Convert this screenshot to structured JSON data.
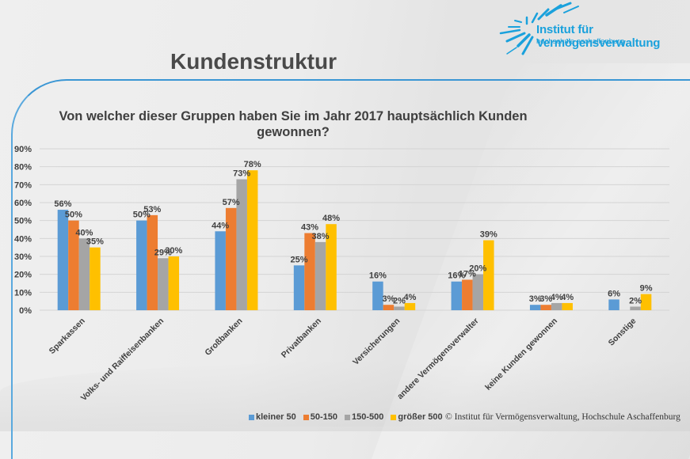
{
  "header": {
    "title": "Kundenstruktur",
    "logo_line1": "Institut für Vermögensverwaltung",
    "logo_line2": "hochschule aschaffenburg"
  },
  "footer": {
    "copyright": "© Institut für Vermögensverwaltung, Hochschule Aschaffenburg"
  },
  "chart_data": {
    "type": "bar",
    "title": "Von welcher dieser Gruppen haben Sie im Jahr 2017 hauptsächlich Kunden gewonnen?",
    "title_lines": [
      "Von welcher dieser Gruppen haben Sie im Jahr 2017 hauptsächlich Kunden",
      "gewonnen?"
    ],
    "xlabel": "",
    "ylabel": "",
    "ylim": [
      0,
      90
    ],
    "yticks": [
      "0%",
      "10%",
      "20%",
      "30%",
      "40%",
      "50%",
      "60%",
      "70%",
      "80%",
      "90%"
    ],
    "grid": true,
    "legend_position": "bottom",
    "categories": [
      "Sparkassen",
      "Volks- und Raiffeisenbanken",
      "Großbanken",
      "Privatbanken",
      "Versicherungen",
      "andere Vermögensverwalter",
      "keine Kunden gewonnen",
      "Sonstige"
    ],
    "series": [
      {
        "name": "kleiner 50",
        "color": "#5b9bd5",
        "values": [
          56,
          50,
          44,
          25,
          16,
          16,
          3,
          6
        ]
      },
      {
        "name": "50-150",
        "color": "#ed7d31",
        "values": [
          50,
          53,
          57,
          43,
          3,
          17,
          3,
          null
        ]
      },
      {
        "name": "150-500",
        "color": "#a5a5a5",
        "values": [
          40,
          29,
          73,
          38,
          2,
          20,
          4,
          2
        ]
      },
      {
        "name": "größer 500",
        "color": "#ffc000",
        "values": [
          35,
          30,
          78,
          48,
          4,
          39,
          4,
          9
        ]
      }
    ]
  }
}
